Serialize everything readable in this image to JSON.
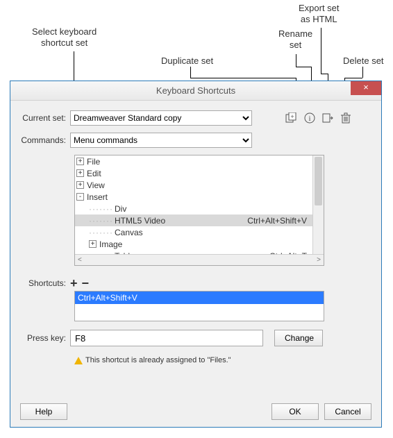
{
  "callouts": {
    "select_set": "Select keyboard\nshortcut set",
    "duplicate": "Duplicate set",
    "rename": "Rename\nset",
    "export": "Export set\nas HTML",
    "delete": "Delete set"
  },
  "dialog": {
    "title": "Keyboard Shortcuts",
    "labels": {
      "current_set": "Current set:",
      "commands": "Commands:",
      "shortcuts": "Shortcuts:",
      "press_key": "Press key:"
    },
    "current_set_value": "Dreamweaver Standard copy",
    "commands_value": "Menu commands",
    "tree": [
      {
        "indent": 0,
        "expander": "+",
        "label": "File",
        "shortcut": "",
        "selected": false
      },
      {
        "indent": 0,
        "expander": "+",
        "label": "Edit",
        "shortcut": "",
        "selected": false
      },
      {
        "indent": 0,
        "expander": "+",
        "label": "View",
        "shortcut": "",
        "selected": false
      },
      {
        "indent": 0,
        "expander": "-",
        "label": "Insert",
        "shortcut": "",
        "selected": false
      },
      {
        "indent": 1,
        "expander": "",
        "label": "Div",
        "shortcut": "",
        "selected": false
      },
      {
        "indent": 1,
        "expander": "",
        "label": "HTML5 Video",
        "shortcut": "Ctrl+Alt+Shift+V",
        "selected": true
      },
      {
        "indent": 1,
        "expander": "",
        "label": "Canvas",
        "shortcut": "",
        "selected": false
      },
      {
        "indent": 1,
        "expander": "+",
        "label": "Image",
        "shortcut": "",
        "selected": false
      },
      {
        "indent": 1,
        "expander": "",
        "label": "Table",
        "shortcut": "Ctrl+Alt+T",
        "selected": false
      }
    ],
    "selected_shortcut": "Ctrl+Alt+Shift+V",
    "press_key_value": "F8",
    "change_label": "Change",
    "warning_text": "This shortcut is already assigned to \"Files.\"",
    "buttons": {
      "help": "Help",
      "ok": "OK",
      "cancel": "Cancel"
    }
  },
  "colors": {
    "dialog_border": "#2b7bb9",
    "close_bg": "#c75050",
    "selection_bg": "#2b7bff",
    "tree_sel_bg": "#d9d9d9"
  }
}
